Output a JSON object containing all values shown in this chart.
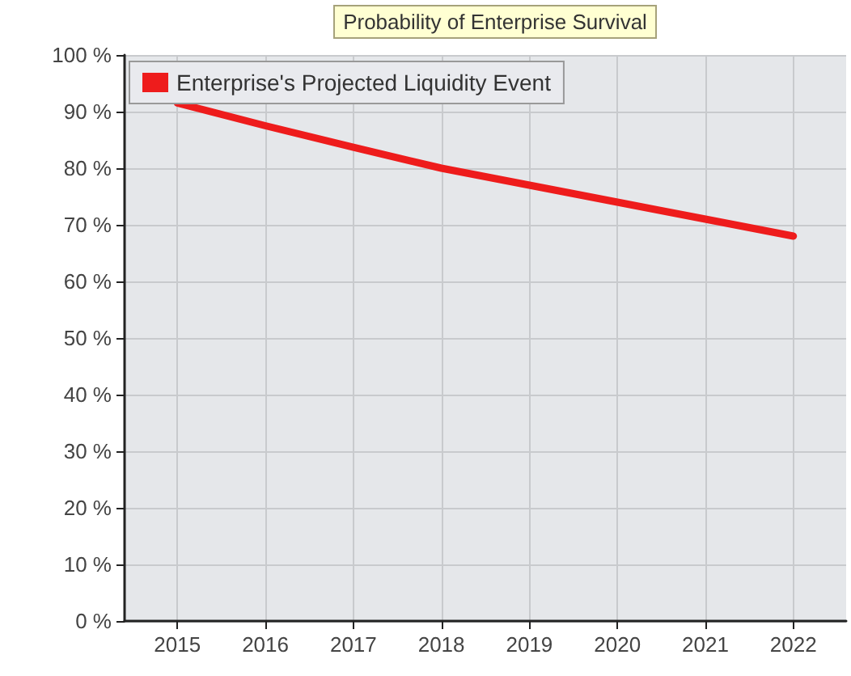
{
  "chart_data": {
    "type": "line",
    "title": "Probability of Enterprise Survival",
    "x": [
      2015,
      2016,
      2017,
      2018,
      2019,
      2020,
      2021,
      2022
    ],
    "series": [
      {
        "name": "Enterprise's Projected Liquidity Event",
        "color": "#ee1c1c",
        "values": [
          91.5,
          87.5,
          83.7,
          80,
          77,
          74,
          71,
          68
        ]
      }
    ],
    "xlim": [
      2014.4,
      2022.6
    ],
    "xticks": [
      2015,
      2016,
      2017,
      2018,
      2019,
      2020,
      2021,
      2022
    ],
    "ylim": [
      0,
      100
    ],
    "yticks": [
      {
        "value": 0,
        "label": "0 %"
      },
      {
        "value": 10,
        "label": "10 %"
      },
      {
        "value": 20,
        "label": "20 %"
      },
      {
        "value": 30,
        "label": "30 %"
      },
      {
        "value": 40,
        "label": "40 %"
      },
      {
        "value": 50,
        "label": "50 %"
      },
      {
        "value": 60,
        "label": "60 %"
      },
      {
        "value": 70,
        "label": "70 %"
      },
      {
        "value": 80,
        "label": "80 %"
      },
      {
        "value": 90,
        "label": "90 %"
      },
      {
        "value": 100,
        "label": "100 %"
      }
    ],
    "grid": true,
    "legend": "top left",
    "marker": "none",
    "line_style": "solid"
  }
}
